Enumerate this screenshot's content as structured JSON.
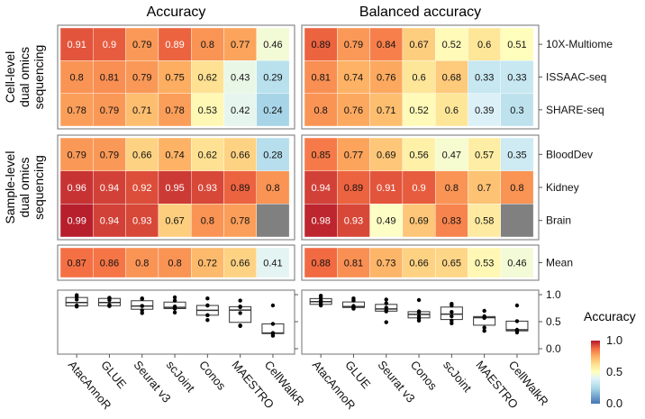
{
  "chart_data": {
    "type": "heatmap",
    "panels": [
      {
        "title": "Accuracy",
        "methods": [
          "AtacAnnoR",
          "GLUE",
          "Seurat v3",
          "scJoint",
          "Conos",
          "MAESTRO",
          "CellWalkR"
        ],
        "groups": [
          {
            "label": "Cell-level dual omics sequencing",
            "rows": [
              {
                "name": "10X-Multiome",
                "values": [
                  0.91,
                  0.9,
                  0.79,
                  0.89,
                  0.8,
                  0.77,
                  0.46
                ]
              },
              {
                "name": "ISSAAC-seq",
                "values": [
                  0.8,
                  0.81,
                  0.79,
                  0.75,
                  0.62,
                  0.43,
                  0.29
                ]
              },
              {
                "name": "SHARE-seq",
                "values": [
                  0.78,
                  0.79,
                  0.71,
                  0.78,
                  0.53,
                  0.42,
                  0.24
                ]
              }
            ]
          },
          {
            "label": "Sample-level dual omics sequencing",
            "rows": [
              {
                "name": "BloodDev",
                "values": [
                  0.79,
                  0.79,
                  0.66,
                  0.74,
                  0.62,
                  0.66,
                  0.28
                ]
              },
              {
                "name": "Kidney",
                "values": [
                  0.96,
                  0.94,
                  0.92,
                  0.95,
                  0.93,
                  0.89,
                  0.8
                ]
              },
              {
                "name": "Brain",
                "values": [
                  0.99,
                  0.94,
                  0.93,
                  0.67,
                  0.8,
                  0.78,
                  null
                ]
              }
            ]
          },
          {
            "label": "",
            "rows": [
              {
                "name": "Mean",
                "values": [
                  0.87,
                  0.86,
                  0.8,
                  0.8,
                  0.72,
                  0.66,
                  0.41
                ]
              }
            ]
          }
        ]
      },
      {
        "title": "Balanced accuracy",
        "methods": [
          "AtacAnnoR",
          "GLUE",
          "Seurat v3",
          "Conos",
          "scJoint",
          "MAESTRO",
          "CellWalkR"
        ],
        "groups": [
          {
            "label": "",
            "rows": [
              {
                "name": "10X-Multiome",
                "values": [
                  0.89,
                  0.79,
                  0.84,
                  0.67,
                  0.52,
                  0.6,
                  0.51
                ]
              },
              {
                "name": "ISSAAC-seq",
                "values": [
                  0.81,
                  0.74,
                  0.76,
                  0.6,
                  0.68,
                  0.33,
                  0.33
                ]
              },
              {
                "name": "SHARE-seq",
                "values": [
                  0.8,
                  0.76,
                  0.71,
                  0.52,
                  0.6,
                  0.39,
                  0.3
                ]
              }
            ]
          },
          {
            "label": "",
            "rows": [
              {
                "name": "BloodDev",
                "values": [
                  0.85,
                  0.77,
                  0.69,
                  0.56,
                  0.47,
                  0.57,
                  0.35
                ]
              },
              {
                "name": "Kidney",
                "values": [
                  0.94,
                  0.89,
                  0.91,
                  0.9,
                  0.8,
                  0.7,
                  0.8
                ]
              },
              {
                "name": "Brain",
                "values": [
                  0.98,
                  0.93,
                  0.49,
                  0.69,
                  0.83,
                  0.58,
                  null
                ]
              }
            ]
          },
          {
            "label": "",
            "rows": [
              {
                "name": "Mean",
                "values": [
                  0.88,
                  0.81,
                  0.73,
                  0.66,
                  0.65,
                  0.53,
                  0.46
                ]
              }
            ]
          }
        ]
      }
    ],
    "boxplot_axis": {
      "ylim": [
        0,
        1
      ],
      "ticks": [
        "0.0",
        "0.5",
        "1.0"
      ]
    },
    "legend": {
      "title": "Accuracy",
      "range": [
        0,
        1
      ],
      "ticks": [
        "0.0",
        "0.5",
        "1.0"
      ],
      "placement": "right"
    },
    "colormap": [
      "#4575b4",
      "#abd9e9",
      "#e0f3f8",
      "#ffffbf",
      "#fee090",
      "#fdae61",
      "#f46d43",
      "#b2182b"
    ],
    "missing_color": "#808080"
  }
}
